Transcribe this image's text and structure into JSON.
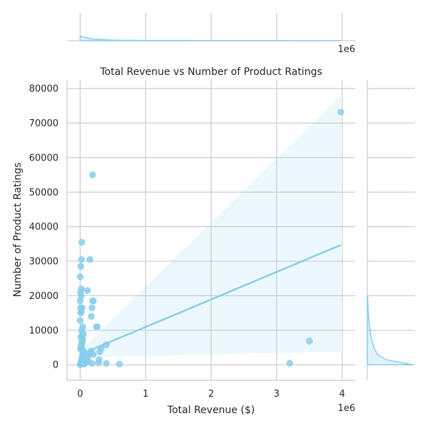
{
  "chart_data": {
    "type": "scatter",
    "title": "Total Revenue vs Number of Product Ratings",
    "xlabel": "Total Revenue ($)",
    "ylabel": "Number of Product Ratings",
    "x_offset_label": "1e6",
    "x_ticks": [
      0,
      1,
      2,
      3,
      4
    ],
    "y_ticks": [
      0,
      10000,
      20000,
      30000,
      40000,
      50000,
      60000,
      70000,
      80000
    ],
    "xlim": [
      -0.2,
      4.2
    ],
    "ylim": [
      -4500,
      82500
    ],
    "grid": true,
    "point_color": "#87ceeb",
    "points": [
      [
        0.0,
        55
      ],
      [
        0.005,
        120
      ],
      [
        0.01,
        300
      ],
      [
        0.012,
        600
      ],
      [
        0.015,
        900
      ],
      [
        0.02,
        1200
      ],
      [
        0.025,
        1500
      ],
      [
        0.03,
        2000
      ],
      [
        0.035,
        2500
      ],
      [
        0.04,
        3000
      ],
      [
        0.045,
        3500
      ],
      [
        0.05,
        4000
      ],
      [
        0.008,
        4500
      ],
      [
        0.012,
        5000
      ],
      [
        0.018,
        5500
      ],
      [
        0.022,
        6000
      ],
      [
        0.028,
        6500
      ],
      [
        0.032,
        7000
      ],
      [
        0.038,
        7500
      ],
      [
        0.01,
        8000
      ],
      [
        0.03,
        8500
      ],
      [
        0.05,
        9000
      ],
      [
        0.02,
        10000
      ],
      [
        0.04,
        11000
      ],
      [
        0.0,
        12800
      ],
      [
        0.01,
        15000
      ],
      [
        0.02,
        15500
      ],
      [
        0.005,
        16500
      ],
      [
        0.03,
        16500
      ],
      [
        0.0,
        18500
      ],
      [
        0.015,
        20000
      ],
      [
        0.005,
        21000
      ],
      [
        0.02,
        22000
      ],
      [
        0.0,
        25500
      ],
      [
        0.01,
        28500
      ],
      [
        0.02,
        30500
      ],
      [
        0.025,
        35500
      ],
      [
        0.06,
        200
      ],
      [
        0.07,
        500
      ],
      [
        0.08,
        900
      ],
      [
        0.09,
        1400
      ],
      [
        0.1,
        2000
      ],
      [
        0.12,
        2600
      ],
      [
        0.13,
        1000
      ],
      [
        0.15,
        3500
      ],
      [
        0.17,
        4000
      ],
      [
        0.18,
        400
      ],
      [
        0.2,
        3000
      ],
      [
        0.11,
        21500
      ],
      [
        0.15,
        30500
      ],
      [
        0.17,
        14000
      ],
      [
        0.18,
        16500
      ],
      [
        0.19,
        18500
      ],
      [
        0.2,
        18500
      ],
      [
        0.19,
        55000
      ],
      [
        0.25,
        11000
      ],
      [
        0.26,
        11000
      ],
      [
        0.28,
        600
      ],
      [
        0.29,
        1500
      ],
      [
        0.3,
        3800
      ],
      [
        0.32,
        4800
      ],
      [
        0.4,
        400
      ],
      [
        0.4,
        5800
      ],
      [
        0.6,
        200
      ],
      [
        3.2,
        500
      ],
      [
        3.5,
        6900
      ],
      [
        3.98,
        73200
      ]
    ],
    "regression": {
      "x": [
        0.0,
        3.98
      ],
      "y": [
        3000,
        34700
      ]
    },
    "confidence_band": {
      "x": [
        0.0,
        3.98
      ],
      "y_upper": [
        4000,
        78000
      ],
      "y_lower": [
        2200,
        3800
      ]
    },
    "marginal_top": {
      "x": [
        0.0,
        0.05,
        0.2,
        0.5,
        1.0,
        2.0,
        3.0,
        3.98
      ],
      "density": [
        1.0,
        0.85,
        0.35,
        0.12,
        0.05,
        0.02,
        0.015,
        0.01
      ]
    },
    "marginal_right": {
      "y": [
        0,
        500,
        1500,
        3000,
        5000,
        8000,
        12000,
        16000,
        20000
      ],
      "density": [
        1.0,
        0.8,
        0.4,
        0.22,
        0.14,
        0.08,
        0.04,
        0.015,
        0.005
      ]
    }
  }
}
